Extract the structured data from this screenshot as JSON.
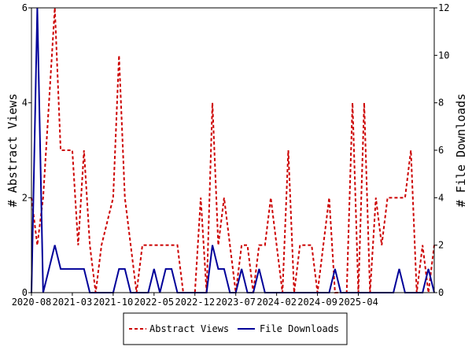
{
  "chart_data": {
    "type": "line",
    "x_tick_labels": [
      "2020-08",
      "2021-03",
      "2021-10",
      "2022-05",
      "2022-12",
      "2023-07",
      "2024-02",
      "2024-09",
      "2025-04"
    ],
    "y_left": {
      "label": "# Abstract Views",
      "ylim": [
        0,
        6
      ],
      "ticks": [
        "0",
        "2",
        "4",
        "6"
      ]
    },
    "y_right": {
      "label": "# File Downloads",
      "ylim": [
        0,
        12
      ],
      "ticks": [
        "0",
        "2",
        "4",
        "6",
        "8",
        "10",
        "12"
      ]
    },
    "series": [
      {
        "name": "Abstract Views",
        "axis": "left",
        "color": "#cc0000",
        "style": "dashed",
        "values": [
          2,
          1,
          2,
          4,
          6,
          3,
          3,
          3,
          1,
          3,
          1,
          0,
          1,
          1.5,
          2,
          5,
          2,
          1,
          0,
          1,
          1,
          1,
          1,
          1,
          1,
          1,
          0,
          0,
          0,
          2,
          0,
          4,
          1,
          2,
          1,
          0,
          1,
          1,
          0,
          1,
          1,
          2,
          1,
          0,
          3,
          0,
          1,
          1,
          1,
          0,
          1,
          2,
          0,
          0,
          0,
          4,
          0,
          4,
          0,
          2,
          1,
          2,
          2,
          2,
          2,
          3,
          0,
          1,
          0,
          1
        ]
      },
      {
        "name": "File Downloads",
        "axis": "right",
        "color": "#000099",
        "style": "solid",
        "values": [
          0,
          12,
          0,
          1,
          2,
          1,
          1,
          1,
          1,
          1,
          0,
          0,
          0,
          0,
          0,
          1,
          1,
          0,
          0,
          0,
          0,
          1,
          0,
          1,
          1,
          0,
          0,
          0,
          0,
          0,
          0,
          2,
          1,
          1,
          0,
          0,
          1,
          0,
          0,
          1,
          0,
          0,
          0,
          0,
          0,
          0,
          0,
          0,
          0,
          0,
          0,
          0,
          1,
          0,
          0,
          0,
          0,
          0,
          0,
          0,
          0,
          0,
          0,
          1,
          0,
          0,
          0,
          0,
          1,
          0
        ]
      }
    ],
    "legend": {
      "placement": "bottom-center",
      "entries": [
        "Abstract Views",
        "File Downloads"
      ]
    },
    "grid": false
  }
}
